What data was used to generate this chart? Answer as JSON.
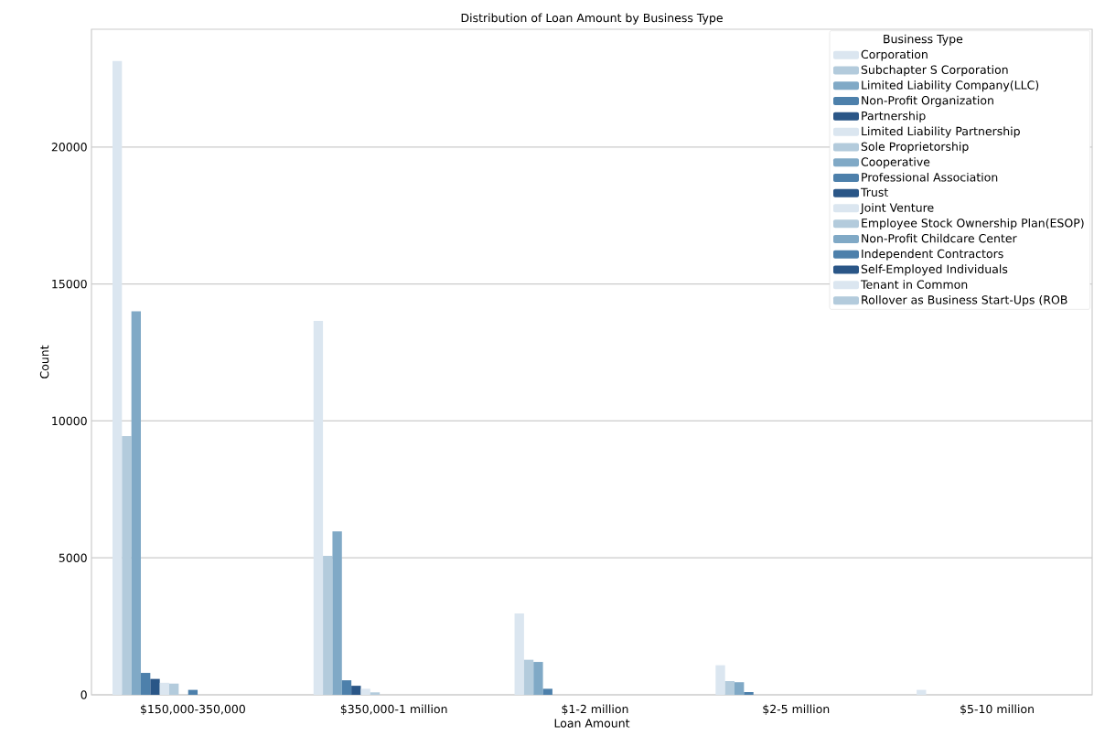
{
  "chart_data": {
    "type": "bar",
    "title": "Distribution of Loan Amount by Business Type",
    "xlabel": "Loan Amount",
    "ylabel": "Count",
    "legend_title": "Business Type",
    "categories": [
      "$150,000-350,000",
      "$350,000-1 million",
      "$1-2 million",
      "$2-5 million",
      "$5-10 million"
    ],
    "ylim": [
      0,
      24300
    ],
    "yticks": [
      0,
      5000,
      10000,
      15000,
      20000
    ],
    "grid": "y",
    "legend": "top right",
    "series": [
      {
        "name": "Corporation",
        "color": "#dbe6f0",
        "values": [
          23140,
          13650,
          2970,
          1080,
          180
        ]
      },
      {
        "name": "Subchapter S Corporation",
        "color": "#b3cbdc",
        "values": [
          9450,
          5070,
          1280,
          500,
          0
        ]
      },
      {
        "name": "Limited  Liability Company(LLC)",
        "color": "#80a9c6",
        "values": [
          14000,
          5970,
          1200,
          460,
          0
        ]
      },
      {
        "name": "Non-Profit Organization",
        "color": "#4d80ab",
        "values": [
          800,
          530,
          220,
          100,
          0
        ]
      },
      {
        "name": "Partnership",
        "color": "#2a5687",
        "values": [
          580,
          330,
          0,
          0,
          0
        ]
      },
      {
        "name": "Limited Liability Partnership",
        "color": "#dbe6f0",
        "values": [
          440,
          220,
          0,
          0,
          0
        ]
      },
      {
        "name": "Sole Proprietorship",
        "color": "#b3cbdc",
        "values": [
          410,
          90,
          0,
          0,
          0
        ]
      },
      {
        "name": "Cooperative",
        "color": "#80a9c6",
        "values": [
          0,
          0,
          0,
          0,
          0
        ]
      },
      {
        "name": "Professional Association",
        "color": "#4d80ab",
        "values": [
          180,
          0,
          0,
          0,
          0
        ]
      },
      {
        "name": "Trust",
        "color": "#2a5687",
        "values": [
          0,
          0,
          0,
          0,
          0
        ]
      },
      {
        "name": "Joint Venture",
        "color": "#dbe6f0",
        "values": [
          0,
          0,
          0,
          0,
          0
        ]
      },
      {
        "name": "Employee Stock Ownership Plan(ESOP)",
        "color": "#b3cbdc",
        "values": [
          0,
          0,
          0,
          0,
          0
        ]
      },
      {
        "name": "Non-Profit Childcare Center",
        "color": "#80a9c6",
        "values": [
          0,
          0,
          0,
          0,
          0
        ]
      },
      {
        "name": "Independent Contractors",
        "color": "#4d80ab",
        "values": [
          0,
          0,
          0,
          0,
          0
        ]
      },
      {
        "name": "Self-Employed Individuals",
        "color": "#2a5687",
        "values": [
          0,
          0,
          0,
          0,
          0
        ]
      },
      {
        "name": "Tenant in Common",
        "color": "#dbe6f0",
        "values": [
          0,
          0,
          0,
          0,
          0
        ]
      },
      {
        "name": "Rollover as Business Start-Ups (ROB",
        "color": "#b3cbdc",
        "values": [
          0,
          0,
          0,
          0,
          0
        ]
      }
    ]
  }
}
